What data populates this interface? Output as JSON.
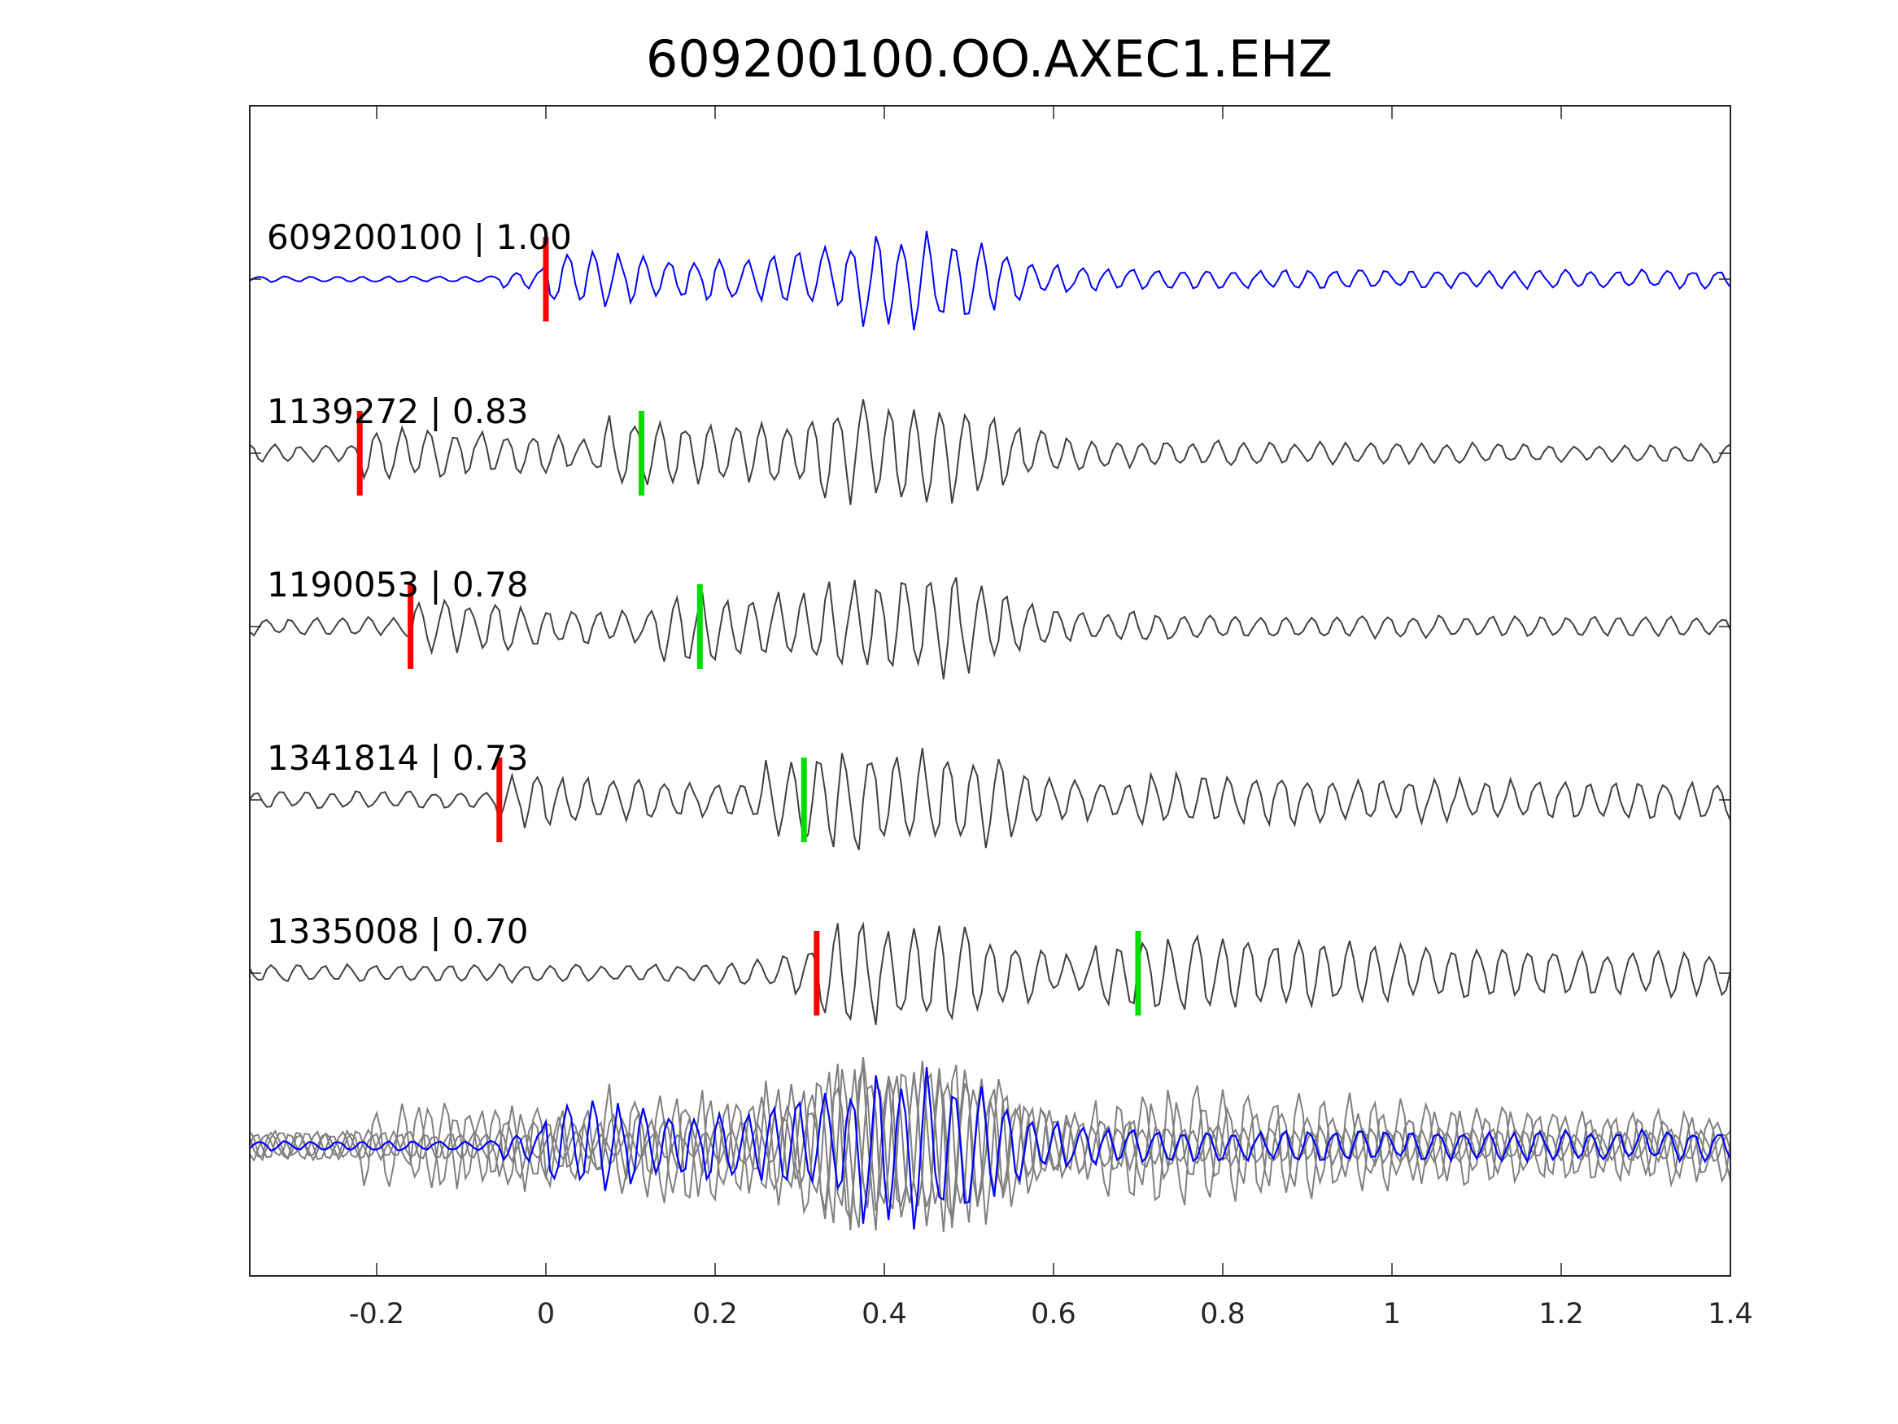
{
  "chart_data": {
    "type": "line",
    "title": "609200100.OO.AXEC1.EHZ",
    "xlabel": "",
    "ylabel": "",
    "xlim": [
      -0.35,
      1.4
    ],
    "xticks": [
      -0.2,
      0,
      0.2,
      0.4,
      0.6,
      0.8,
      1,
      1.2,
      1.4
    ],
    "xtick_labels": [
      "-0.2",
      "0",
      "0.2",
      "0.4",
      "0.6",
      "0.8",
      "1",
      "1.2",
      "1.4"
    ],
    "grid": false,
    "legend": "none",
    "colors": {
      "target_trace": "#0000ff",
      "neighbor_trace": "#404040",
      "overlay_trace": "#808080",
      "p_pick": "#ff0000",
      "s_pick": "#00dd00",
      "axes": "#262626"
    },
    "traces": [
      {
        "label": "609200100 | 1.00",
        "event_id": "609200100",
        "cc": 1.0,
        "color": "#0000ff",
        "p_pick": 0.0,
        "s_pick": null
      },
      {
        "label": "1139272 | 0.83",
        "event_id": "1139272",
        "cc": 0.83,
        "color": "#404040",
        "p_pick": -0.22,
        "s_pick": 0.113
      },
      {
        "label": "1190053 | 0.78",
        "event_id": "1190053",
        "cc": 0.78,
        "color": "#404040",
        "p_pick": -0.16,
        "s_pick": 0.182
      },
      {
        "label": "1341814 | 0.73",
        "event_id": "1341814",
        "cc": 0.73,
        "color": "#404040",
        "p_pick": -0.055,
        "s_pick": 0.305
      },
      {
        "label": "1335008 | 0.70",
        "event_id": "1335008",
        "cc": 0.7,
        "color": "#404040",
        "p_pick": 0.32,
        "s_pick": 0.7
      }
    ],
    "stack": {
      "description_label": "",
      "reference_color": "#0000ff",
      "others_color": "#808080"
    }
  }
}
